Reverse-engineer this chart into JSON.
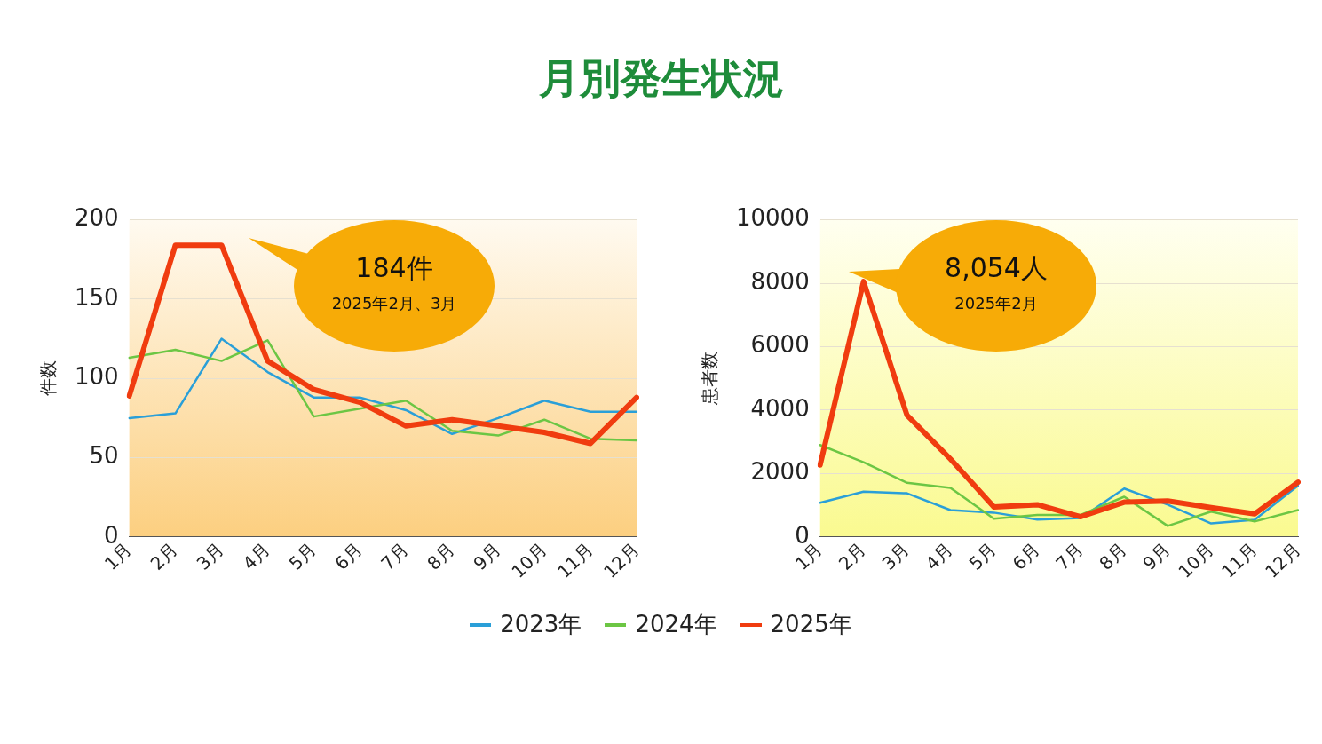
{
  "chart_data": [
    {
      "type": "line",
      "title": "月別発生状況",
      "ylabel": "件数",
      "categories": [
        "1月",
        "2月",
        "3月",
        "4月",
        "5月",
        "6月",
        "7月",
        "8月",
        "9月",
        "10月",
        "11月",
        "12月"
      ],
      "series": [
        {
          "name": "2023年",
          "color": "#2a9fd8",
          "values": [
            75,
            78,
            125,
            104,
            88,
            88,
            80,
            65,
            75,
            86,
            79,
            79
          ]
        },
        {
          "name": "2024年",
          "color": "#6cc644",
          "values": [
            113,
            118,
            111,
            124,
            76,
            81,
            86,
            67,
            64,
            74,
            62,
            61
          ]
        },
        {
          "name": "2025年",
          "color": "#f03c0f",
          "values": [
            89,
            184,
            184,
            111,
            93,
            85,
            70,
            74,
            70,
            66,
            59,
            88
          ]
        }
      ],
      "ylim": [
        0,
        200
      ],
      "yticks": [
        0,
        50,
        100,
        150,
        200
      ],
      "grid": "y",
      "legend": "bottom",
      "marker": "none",
      "line_style": "solid",
      "annotations": [
        "184件",
        "2025年2月、3月"
      ]
    },
    {
      "type": "line",
      "ylabel": "患者数",
      "categories": [
        "1月",
        "2月",
        "3月",
        "4月",
        "5月",
        "6月",
        "7月",
        "8月",
        "9月",
        "10月",
        "11月",
        "12月"
      ],
      "series": [
        {
          "name": "2023年",
          "color": "#2a9fd8",
          "values": [
            1080,
            1430,
            1380,
            850,
            770,
            550,
            600,
            1530,
            1020,
            430,
            540,
            1620
          ]
        },
        {
          "name": "2024年",
          "color": "#6cc644",
          "values": [
            2900,
            2360,
            1710,
            1550,
            580,
            700,
            700,
            1270,
            350,
            800,
            490,
            850
          ]
        },
        {
          "name": "2025年",
          "color": "#f03c0f",
          "values": [
            2270,
            8054,
            3840,
            2460,
            950,
            1020,
            640,
            1100,
            1140,
            930,
            730,
            1730
          ]
        }
      ],
      "ylim": [
        0,
        10000
      ],
      "yticks": [
        0,
        2000,
        4000,
        6000,
        8000,
        10000
      ],
      "grid": "y",
      "legend": "bottom",
      "marker": "none",
      "line_style": "solid",
      "annotations": [
        "8,054人",
        "2025年2月"
      ]
    }
  ]
}
